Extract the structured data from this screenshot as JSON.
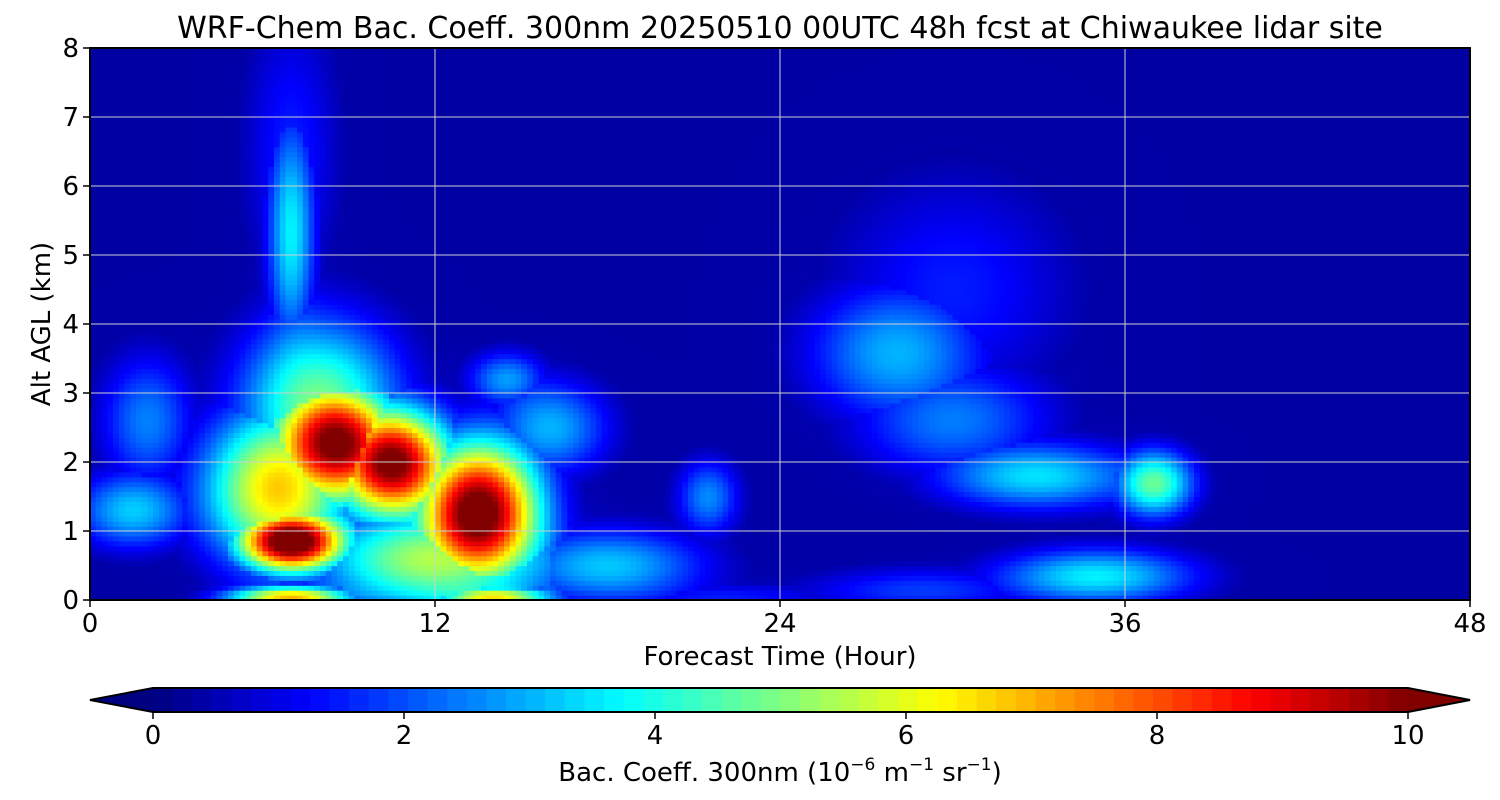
{
  "chart_data": {
    "type": "heatmap",
    "title": "WRF-Chem Bac. Coeff. 300nm  20250510 00UTC 48h fcst at Chiwaukee lidar site",
    "xlabel": "Forecast Time (Hour)",
    "ylabel": "Alt AGL (km)",
    "xlim": [
      0,
      48
    ],
    "ylim": [
      0,
      8
    ],
    "xticks": [
      "0",
      "12",
      "24",
      "36",
      "48"
    ],
    "xtick_values": [
      0,
      12,
      24,
      36,
      48
    ],
    "yticks": [
      "0",
      "1",
      "2",
      "3",
      "4",
      "5",
      "6",
      "7",
      "8"
    ],
    "ytick_values": [
      0,
      1,
      2,
      3,
      4,
      5,
      6,
      7,
      8
    ],
    "grid": true,
    "colormap": "jet",
    "colorbar": {
      "label_prefix": "Bac. Coeff. 300nm  (10",
      "label_sup1": "−6",
      "label_mid": " m",
      "label_sup2": "−1",
      "label_mid2": " sr",
      "label_sup3": "−1",
      "label_suffix": ")",
      "range": [
        0,
        10
      ],
      "ticks": [
        "0",
        "2",
        "4",
        "6",
        "8",
        "10"
      ],
      "tick_values": [
        0,
        2,
        4,
        6,
        8,
        10
      ],
      "extend": "both"
    },
    "field_features": [
      {
        "t": 7,
        "z": 0.85,
        "value": 10.5,
        "st": 1.3,
        "sz": 0.3
      },
      {
        "t": 8.5,
        "z": 2.3,
        "value": 9,
        "st": 1.5,
        "sz": 0.6
      },
      {
        "t": 10.5,
        "z": 2.0,
        "value": 10,
        "st": 1.4,
        "sz": 0.55
      },
      {
        "t": 13.5,
        "z": 1.3,
        "value": 10.5,
        "st": 1.5,
        "sz": 0.7
      },
      {
        "t": 6.5,
        "z": 1.6,
        "value": 6.5,
        "st": 1.8,
        "sz": 0.8
      },
      {
        "t": 8,
        "z": 2.8,
        "value": 5,
        "st": 2.0,
        "sz": 0.9
      },
      {
        "t": 12,
        "z": 0.6,
        "value": 5.5,
        "st": 3.0,
        "sz": 0.55
      },
      {
        "t": 7,
        "z": 0.05,
        "value": 7,
        "st": 1.6,
        "sz": 0.12
      },
      {
        "t": 14,
        "z": 0.05,
        "value": 6.5,
        "st": 1.5,
        "sz": 0.12
      },
      {
        "t": 7,
        "z": 5.3,
        "value": 3.5,
        "st": 0.6,
        "sz": 1.2
      },
      {
        "t": 7,
        "z": 6.5,
        "value": 1.5,
        "st": 1.2,
        "sz": 1.5
      },
      {
        "t": 1.5,
        "z": 1.3,
        "value": 3.2,
        "st": 1.5,
        "sz": 0.4
      },
      {
        "t": 2.0,
        "z": 2.6,
        "value": 2.5,
        "st": 1.2,
        "sz": 0.7
      },
      {
        "t": 16,
        "z": 2.5,
        "value": 3.0,
        "st": 1.5,
        "sz": 0.5
      },
      {
        "t": 14.5,
        "z": 3.2,
        "value": 2.8,
        "st": 1.0,
        "sz": 0.3
      },
      {
        "t": 21.5,
        "z": 1.5,
        "value": 2.6,
        "st": 0.8,
        "sz": 0.4
      },
      {
        "t": 18,
        "z": 0.5,
        "value": 3.2,
        "st": 2.5,
        "sz": 0.4
      },
      {
        "t": 28,
        "z": 3.6,
        "value": 2.8,
        "st": 2.2,
        "sz": 0.7
      },
      {
        "t": 33,
        "z": 1.8,
        "value": 3.4,
        "st": 2.5,
        "sz": 0.35
      },
      {
        "t": 37,
        "z": 1.7,
        "value": 4.8,
        "st": 1.0,
        "sz": 0.35
      },
      {
        "t": 30,
        "z": 2.6,
        "value": 2.4,
        "st": 2.5,
        "sz": 0.6
      },
      {
        "t": 35,
        "z": 0.35,
        "value": 3.6,
        "st": 2.5,
        "sz": 0.3
      },
      {
        "t": 29,
        "z": 0.15,
        "value": 1.8,
        "st": 3.0,
        "sz": 0.25
      },
      {
        "t": 22,
        "z": 0.05,
        "value": 1.5,
        "st": 3.0,
        "sz": 0.15
      },
      {
        "t": 30,
        "z": 4.5,
        "value": 1.5,
        "st": 3.0,
        "sz": 1.2
      }
    ]
  }
}
